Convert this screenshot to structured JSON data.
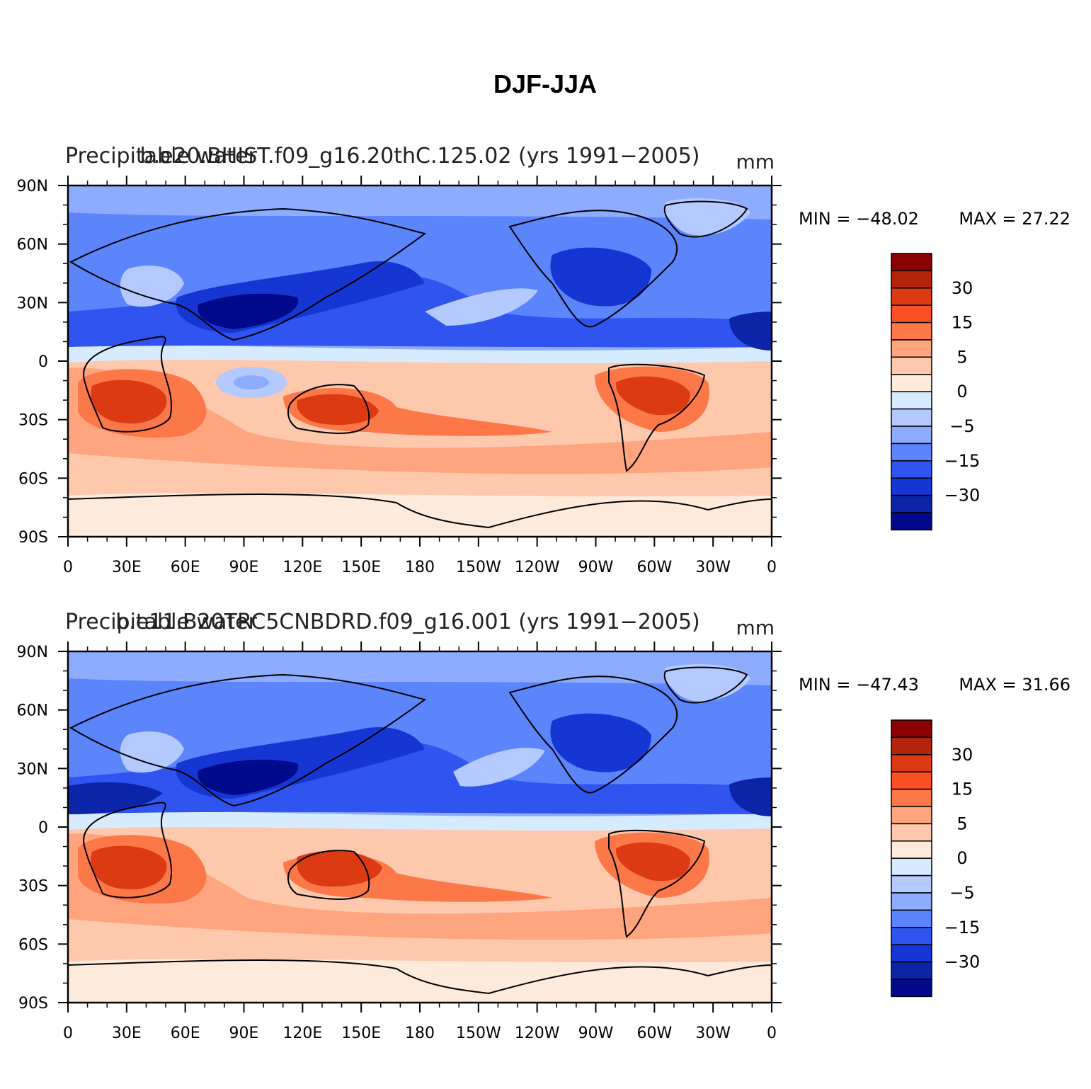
{
  "figure_title": "DJF-JJA",
  "legend_colors": [
    "#8b0000",
    "#b3240a",
    "#dc3a12",
    "#fb5024",
    "#fd7849",
    "#fea47f",
    "#fec8ad",
    "#feeadb",
    "#d7ebff",
    "#b4caff",
    "#8eacfe",
    "#5c84fb",
    "#2f54f0",
    "#1636d3",
    "#0b24a8",
    "#000a8a"
  ],
  "legend_ticks": [
    "30",
    "15",
    "5",
    "0",
    "−5",
    "−15",
    "−30"
  ],
  "ocean_shade": "#a7c0ff",
  "chart_data": [
    {
      "type": "heatmap",
      "left_title": "Precipitable water",
      "center_title": "b.e20.BHIST.f09_g16.20thC.125.02 (yrs 1991−2005)",
      "units": "mm",
      "min_label": "MIN = −48.02",
      "max_label": "MAX =   27.22",
      "min": -48.02,
      "max": 27.22,
      "x_ticks": [
        "0",
        "30E",
        "60E",
        "90E",
        "120E",
        "150E",
        "180",
        "150W",
        "120W",
        "90W",
        "60W",
        "30W",
        "0"
      ],
      "y_ticks": [
        "90N",
        "60N",
        "30N",
        "0",
        "30S",
        "60S",
        "90S"
      ]
    },
    {
      "type": "heatmap",
      "left_title": "Precipitable water",
      "center_title": "b.e11.B20TRC5CNBDRD.f09_g16.001 (yrs 1991−2005)",
      "units": "mm",
      "min_label": "MIN = −47.43",
      "max_label": "MAX =   31.66",
      "min": -47.43,
      "max": 31.66,
      "x_ticks": [
        "0",
        "30E",
        "60E",
        "90E",
        "120E",
        "150E",
        "180",
        "150W",
        "120W",
        "90W",
        "60W",
        "30W",
        "0"
      ],
      "y_ticks": [
        "90N",
        "60N",
        "30N",
        "0",
        "30S",
        "60S",
        "90S"
      ]
    }
  ]
}
